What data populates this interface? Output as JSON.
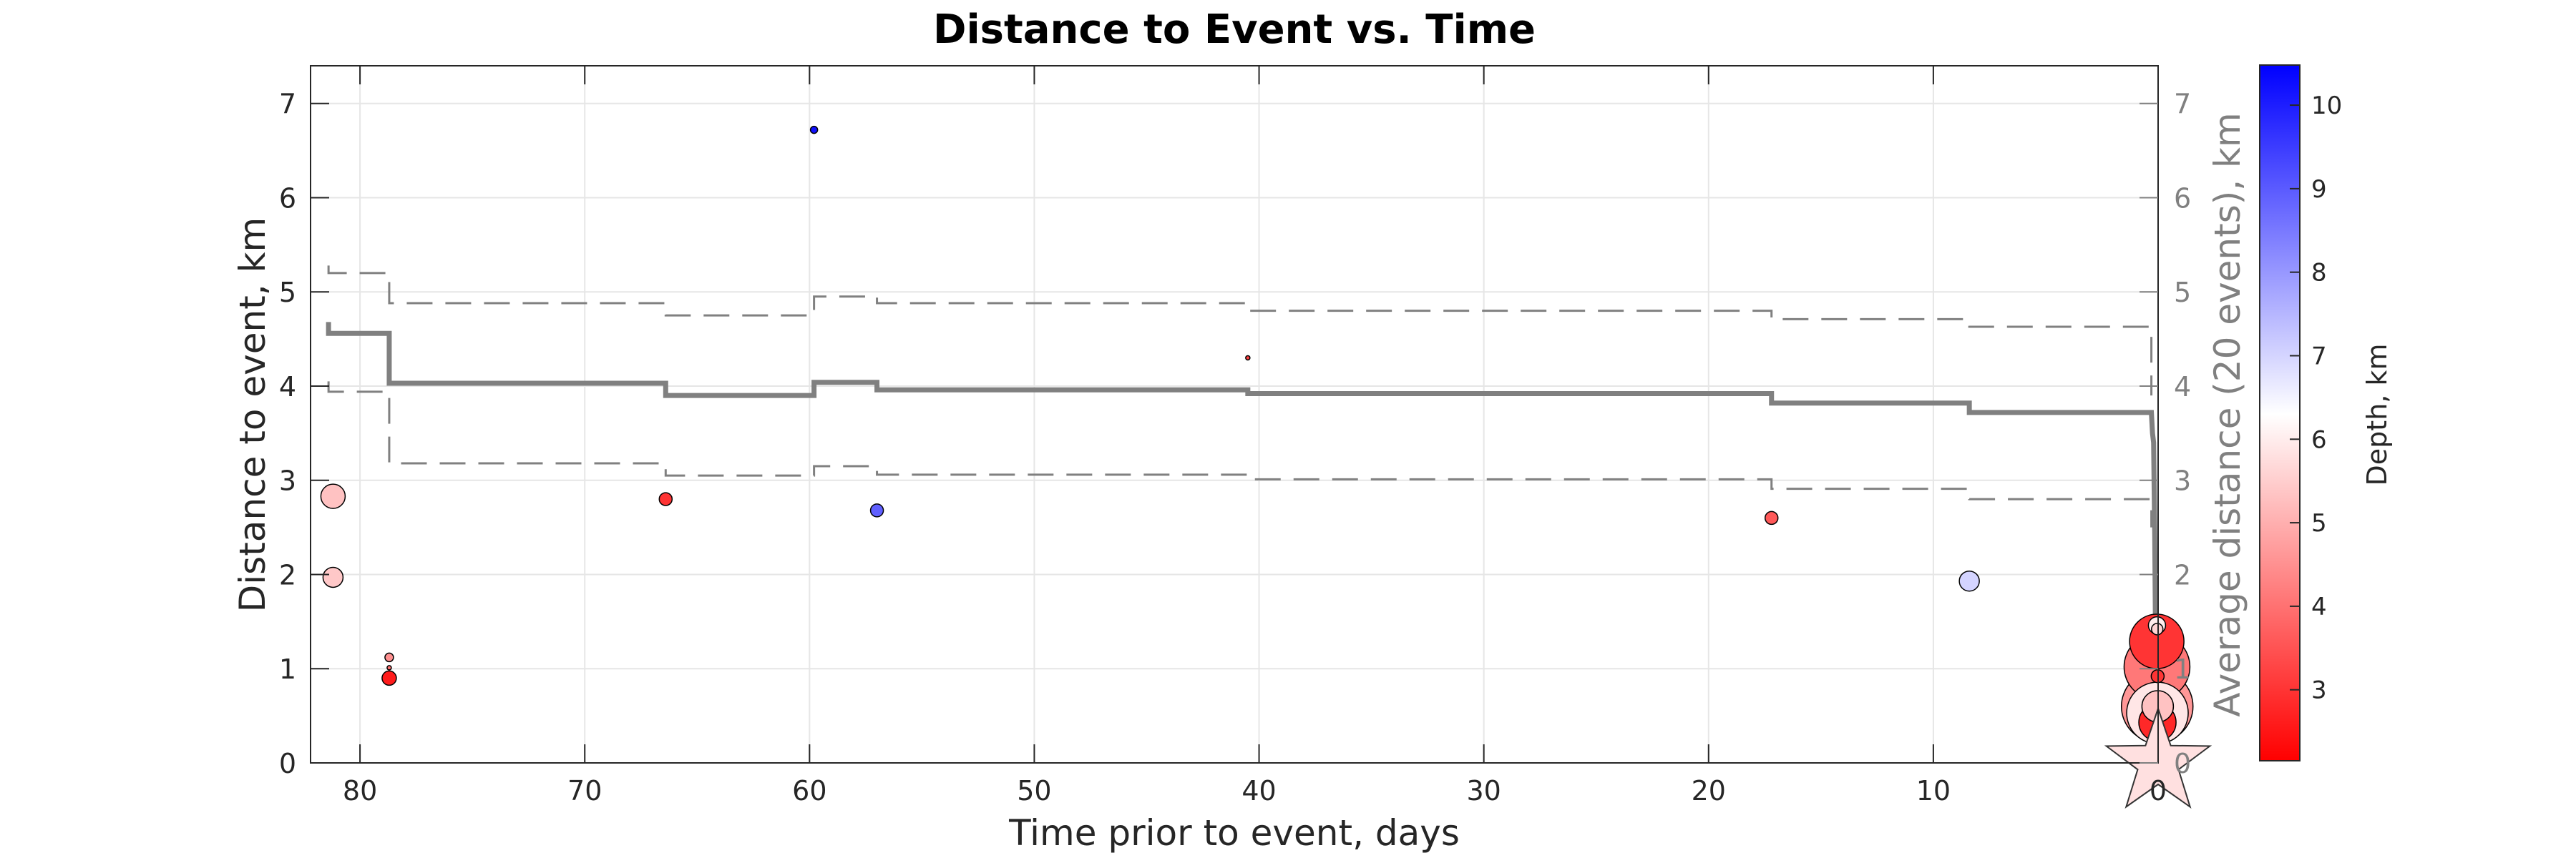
{
  "chart_data": {
    "type": "scatter",
    "title": "Distance to Event vs. Time",
    "xlabel": "Time prior to event, days",
    "ylabel": "Distance to event, km",
    "ylabel_right": "Average distance (20 events), km",
    "colorbar_label": "Depth, km",
    "xlim": [
      0,
      82.2
    ],
    "x_reversed": true,
    "ylim": [
      0,
      7.4
    ],
    "xticks": [
      0,
      10,
      20,
      30,
      40,
      50,
      60,
      70,
      80
    ],
    "yticks": [
      0,
      1,
      2,
      3,
      4,
      5,
      6,
      7
    ],
    "clim": [
      2.15,
      10.48
    ],
    "cticks": [
      3,
      4,
      5,
      6,
      7,
      8,
      9,
      10
    ],
    "colormap": {
      "low": "#ff0000",
      "mid": "#ffffff",
      "high": "#0000ff",
      "mid_value": 6.3
    },
    "grid": true,
    "events": [
      {
        "t": 81.2,
        "d": 2.83,
        "depth": 5.3,
        "mag": 17
      },
      {
        "t": 81.2,
        "d": 1.97,
        "depth": 5.4,
        "mag": 14
      },
      {
        "t": 78.7,
        "d": 1.12,
        "depth": 4.5,
        "mag": 6
      },
      {
        "t": 78.7,
        "d": 1.01,
        "depth": 4.0,
        "mag": 3
      },
      {
        "t": 78.7,
        "d": 0.9,
        "depth": 2.6,
        "mag": 10
      },
      {
        "t": 66.4,
        "d": 2.8,
        "depth": 3.0,
        "mag": 9
      },
      {
        "t": 59.8,
        "d": 6.72,
        "depth": 10.2,
        "mag": 5
      },
      {
        "t": 57.0,
        "d": 2.68,
        "depth": 8.9,
        "mag": 9
      },
      {
        "t": 40.5,
        "d": 4.3,
        "depth": 3.2,
        "mag": 3
      },
      {
        "t": 17.2,
        "d": 2.6,
        "depth": 3.6,
        "mag": 9
      },
      {
        "t": 8.4,
        "d": 1.93,
        "depth": 7.0,
        "mag": 14
      },
      {
        "t": 0.06,
        "d": 1.29,
        "depth": 3.0,
        "mag": 38
      },
      {
        "t": 0.05,
        "d": 1.02,
        "depth": 4.1,
        "mag": 46
      },
      {
        "t": 0.04,
        "d": 0.6,
        "depth": 4.6,
        "mag": 50
      },
      {
        "t": 0.03,
        "d": 0.43,
        "depth": 2.8,
        "mag": 26
      },
      {
        "t": 0.03,
        "d": 0.53,
        "depth": 5.9,
        "mag": 43
      },
      {
        "t": 0.02,
        "d": 0.6,
        "depth": 5.3,
        "mag": 22
      },
      {
        "t": 0.02,
        "d": 0.92,
        "depth": 3.0,
        "mag": 9
      },
      {
        "t": 0.05,
        "d": 1.46,
        "depth": 6.0,
        "mag": 12
      },
      {
        "t": 0.04,
        "d": 1.42,
        "depth": 5.6,
        "mag": 8
      }
    ],
    "mainshock": {
      "t": 0,
      "d": 0,
      "depth": 5.8,
      "marker": "star"
    },
    "series": [
      {
        "name": "mean",
        "x": [
          81.4,
          81.4,
          81.2,
          78.7,
          78.7,
          66.4,
          66.4,
          59.8,
          59.8,
          57.0,
          57.0,
          40.5,
          40.5,
          17.2,
          17.2,
          8.4,
          8.4,
          0.3,
          0.25,
          0.2,
          0.15,
          0.12,
          0.08,
          0.05,
          0.0
        ],
        "y": [
          4.68,
          4.56,
          4.56,
          4.56,
          4.03,
          4.03,
          3.9,
          3.9,
          4.04,
          4.04,
          3.96,
          3.96,
          3.92,
          3.92,
          3.82,
          3.82,
          3.72,
          3.72,
          3.5,
          3.4,
          2.4,
          1.5,
          1.1,
          0.7,
          0.4
        ]
      },
      {
        "name": "upper",
        "x": [
          81.4,
          81.4,
          81.2,
          78.7,
          78.7,
          66.4,
          66.4,
          59.8,
          59.8,
          57.0,
          57.0,
          40.5,
          40.5,
          17.2,
          17.2,
          8.4,
          8.4,
          0.3,
          0.3
        ],
        "y": [
          5.28,
          5.2,
          5.2,
          5.2,
          4.88,
          4.88,
          4.75,
          4.75,
          4.95,
          4.95,
          4.88,
          4.88,
          4.8,
          4.8,
          4.71,
          4.71,
          4.63,
          4.63,
          3.9
        ]
      },
      {
        "name": "lower",
        "x": [
          81.4,
          81.4,
          81.2,
          78.7,
          78.7,
          66.4,
          66.4,
          59.8,
          59.8,
          57.0,
          57.0,
          40.5,
          40.5,
          17.2,
          17.2,
          8.4,
          8.4,
          0.3,
          0.3
        ],
        "y": [
          4.05,
          3.94,
          3.94,
          3.94,
          3.18,
          3.18,
          3.05,
          3.05,
          3.15,
          3.15,
          3.06,
          3.06,
          3.01,
          3.01,
          2.91,
          2.91,
          2.8,
          2.8,
          2.5
        ]
      }
    ]
  }
}
